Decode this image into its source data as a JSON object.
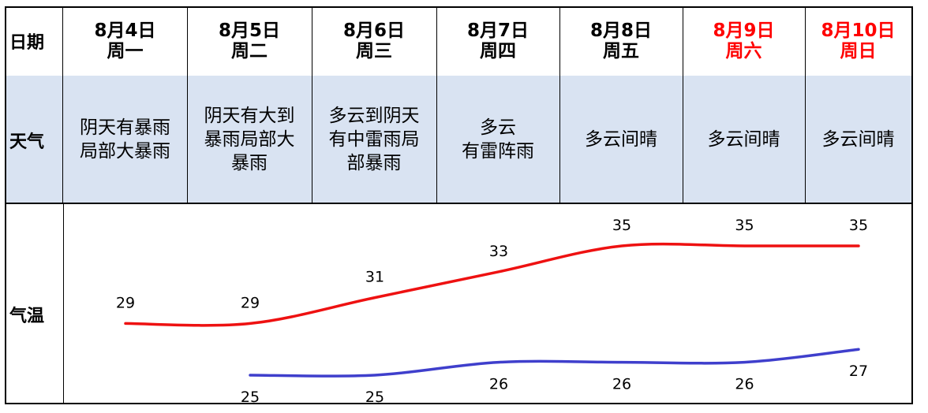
{
  "row_labels": {
    "date": "日期",
    "weather": "天气",
    "temp": "气温"
  },
  "days": [
    {
      "date": "8月4日",
      "weekday": "周一",
      "weather": "阴天有暴雨\n局部大暴雨",
      "weekend": false
    },
    {
      "date": "8月5日",
      "weekday": "周二",
      "weather": "阴天有大到\n暴雨局部大\n暴雨",
      "weekend": false
    },
    {
      "date": "8月6日",
      "weekday": "周三",
      "weather": "多云到阴天\n有中雷雨局\n部暴雨",
      "weekend": false
    },
    {
      "date": "8月7日",
      "weekday": "周四",
      "weather": "多云\n有雷阵雨",
      "weekend": false
    },
    {
      "date": "8月8日",
      "weekday": "周五",
      "weather": "多云间晴",
      "weekend": false
    },
    {
      "date": "8月9日",
      "weekday": "周六",
      "weather": "多云间晴",
      "weekend": true
    },
    {
      "date": "8月10日",
      "weekday": "周日",
      "weather": "多云间晴",
      "weekend": true
    }
  ],
  "colors": {
    "weekend": "#ff0000",
    "high_line": "#ee1111",
    "low_line": "#3f3fcc",
    "weather_bg": "#d9e3f2"
  },
  "chart_data": {
    "type": "line",
    "x": [
      "8月4日",
      "8月5日",
      "8月6日",
      "8月7日",
      "8月8日",
      "8月9日",
      "8月10日"
    ],
    "series": [
      {
        "values": [
          29,
          29,
          31,
          33,
          35,
          35,
          35
        ],
        "color": "#ee1111"
      },
      {
        "values": [
          null,
          25,
          25,
          26,
          26,
          26,
          27
        ],
        "color": "#3f3fcc"
      }
    ],
    "ylim": [
      24,
      36
    ],
    "grid": false
  }
}
